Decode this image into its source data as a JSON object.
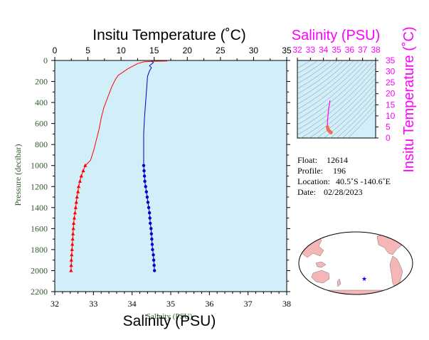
{
  "chart_data": [
    {
      "type": "line",
      "title": "Insitu Temperature (˚C)",
      "xlabel": "Salinity (PSU)",
      "xlabel_underlay": "Salinity (PSU)",
      "ylabel": "Pressure (decibar)",
      "top_axis": {
        "label": "Insitu Temperature (˚C)",
        "range": [
          0,
          35
        ],
        "ticks": [
          "0",
          "5",
          "10",
          "15",
          "20",
          "25",
          "30",
          "35"
        ]
      },
      "bottom_axis": {
        "label": "Salinity (PSU)",
        "range": [
          32,
          38
        ],
        "ticks": [
          "32",
          "33",
          "34",
          "35",
          "36",
          "37",
          "38"
        ]
      },
      "y_axis": {
        "label": "Pressure (decibar)",
        "range": [
          0,
          2200
        ],
        "inverted": true,
        "ticks": [
          "0",
          "200",
          "400",
          "600",
          "800",
          "1000",
          "1200",
          "1400",
          "1600",
          "1800",
          "2000",
          "2200"
        ]
      },
      "background": "#d2eef8",
      "series": [
        {
          "quantity": "temperature",
          "axis": "top",
          "color": "#ff0000",
          "marker": "triangle",
          "profile": [
            [
              17.0,
              5
            ],
            [
              15.0,
              8
            ],
            [
              13.5,
              12
            ],
            [
              12.5,
              30
            ],
            [
              11.0,
              80
            ],
            [
              9.6,
              140
            ],
            [
              9.2,
              175
            ],
            [
              8.6,
              250
            ],
            [
              8.0,
              350
            ],
            [
              7.4,
              450
            ],
            [
              7.0,
              550
            ],
            [
              6.7,
              650
            ],
            [
              6.3,
              750
            ],
            [
              5.9,
              850
            ],
            [
              5.4,
              950
            ]
          ],
          "sampled": [
            [
              4.6,
              1000
            ],
            [
              4.3,
              1050
            ],
            [
              4.0,
              1100
            ],
            [
              3.8,
              1150
            ],
            [
              3.6,
              1200
            ],
            [
              3.5,
              1250
            ],
            [
              3.35,
              1300
            ],
            [
              3.25,
              1350
            ],
            [
              3.15,
              1400
            ],
            [
              3.05,
              1450
            ],
            [
              2.95,
              1500
            ],
            [
              2.85,
              1550
            ],
            [
              2.8,
              1600
            ],
            [
              2.75,
              1650
            ],
            [
              2.7,
              1700
            ],
            [
              2.65,
              1750
            ],
            [
              2.6,
              1800
            ],
            [
              2.55,
              1850
            ],
            [
              2.5,
              1900
            ],
            [
              2.48,
              1950
            ],
            [
              2.45,
              2000
            ]
          ]
        },
        {
          "quantity": "salinity",
          "axis": "bottom",
          "color": "#0000cc",
          "marker": "circle",
          "profile": [
            [
              34.5,
              5
            ],
            [
              34.52,
              10
            ],
            [
              34.55,
              20
            ],
            [
              34.5,
              35
            ],
            [
              34.45,
              50
            ],
            [
              34.5,
              70
            ],
            [
              34.45,
              100
            ],
            [
              34.4,
              150
            ],
            [
              34.38,
              250
            ],
            [
              34.35,
              400
            ],
            [
              34.32,
              550
            ],
            [
              34.3,
              700
            ],
            [
              34.3,
              850
            ],
            [
              34.3,
              950
            ]
          ],
          "sampled": [
            [
              34.3,
              1000
            ],
            [
              34.31,
              1050
            ],
            [
              34.32,
              1100
            ],
            [
              34.33,
              1150
            ],
            [
              34.35,
              1200
            ],
            [
              34.37,
              1250
            ],
            [
              34.39,
              1300
            ],
            [
              34.41,
              1350
            ],
            [
              34.43,
              1400
            ],
            [
              34.45,
              1450
            ],
            [
              34.46,
              1500
            ],
            [
              34.47,
              1550
            ],
            [
              34.49,
              1600
            ],
            [
              34.5,
              1650
            ],
            [
              34.51,
              1700
            ],
            [
              34.52,
              1750
            ],
            [
              34.53,
              1800
            ],
            [
              34.55,
              1850
            ],
            [
              34.56,
              1900
            ],
            [
              34.57,
              1950
            ],
            [
              34.58,
              2000
            ]
          ]
        }
      ]
    },
    {
      "type": "scatter",
      "title": "Salinity (PSU)",
      "ylabel": "Insitu Temperature (˚C)",
      "x_axis": {
        "range": [
          32,
          38
        ],
        "ticks": [
          "32",
          "33",
          "34",
          "35",
          "36",
          "37",
          "38"
        ]
      },
      "y_axis": {
        "range": [
          0,
          35
        ],
        "ticks": [
          "0",
          "5",
          "10",
          "15",
          "20",
          "25",
          "30",
          "35"
        ]
      },
      "background": "#d2eef8",
      "accent_color": "#ff00ff",
      "points": [
        [
          34.5,
          17.0
        ],
        [
          34.45,
          15.0
        ],
        [
          34.4,
          13.5
        ],
        [
          34.38,
          12.0
        ],
        [
          34.35,
          10.5
        ],
        [
          34.33,
          9.0
        ],
        [
          34.3,
          7.5
        ],
        [
          34.3,
          6.0
        ],
        [
          34.31,
          5.0
        ],
        [
          34.33,
          4.3
        ],
        [
          34.36,
          3.8
        ],
        [
          34.4,
          3.4
        ],
        [
          34.45,
          3.1
        ],
        [
          34.5,
          2.8
        ],
        [
          34.55,
          2.6
        ],
        [
          34.58,
          2.45
        ]
      ]
    }
  ],
  "info": {
    "float_label": "Float:",
    "float_value": "12614",
    "profile_label": "Profile:",
    "profile_value": "196",
    "location_label": "Location:",
    "location_value": "40.5˚S  -140.6˚E",
    "date_label": "Date:",
    "date_value": "02/28/2023"
  },
  "map": {
    "land_color": "#f4b6b6",
    "ocean_color": "#ffffff",
    "marker": "★",
    "marker_color": "#0000ff"
  }
}
